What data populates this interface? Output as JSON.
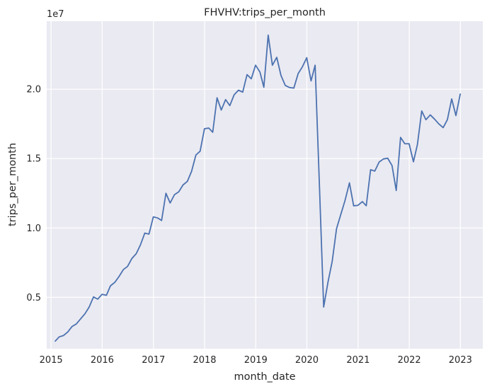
{
  "chart_data": {
    "type": "line",
    "title": "FHVHV:trips_per_month",
    "xlabel": "month_date",
    "ylabel": "trips_per_month",
    "y_offset_label": "1e7",
    "x_ticks": [
      "2015",
      "2016",
      "2017",
      "2018",
      "2019",
      "2020",
      "2021",
      "2022",
      "2023"
    ],
    "y_ticks": [
      "0.5",
      "1.0",
      "1.5",
      "2.0"
    ],
    "xlim": [
      "2014-12-01",
      "2023-06-10"
    ],
    "ylim": [
      1300000,
      24900000
    ],
    "grid": true,
    "line_color": "#4c72b0",
    "background_color": "#eaeaf2",
    "series": [
      {
        "x": [
          "2015-01-31",
          "2015-02-28",
          "2015-03-31",
          "2015-04-30",
          "2015-05-31",
          "2015-06-30",
          "2015-07-31",
          "2015-08-31",
          "2015-09-30",
          "2015-10-31",
          "2015-11-30",
          "2015-12-31",
          "2016-01-31",
          "2016-02-29",
          "2016-03-31",
          "2016-04-30",
          "2016-05-31",
          "2016-06-30",
          "2016-07-31",
          "2016-08-31",
          "2016-09-30",
          "2016-10-31",
          "2016-11-30",
          "2016-12-31",
          "2017-01-31",
          "2017-02-28",
          "2017-03-31",
          "2017-04-30",
          "2017-05-31",
          "2017-06-30",
          "2017-07-31",
          "2017-08-31",
          "2017-09-30",
          "2017-10-31",
          "2017-11-30",
          "2017-12-31",
          "2018-01-31",
          "2018-02-28",
          "2018-03-31",
          "2018-04-30",
          "2018-05-31",
          "2018-06-30",
          "2018-07-31",
          "2018-08-31",
          "2018-09-30",
          "2018-10-31",
          "2018-11-30",
          "2018-12-31",
          "2019-01-31",
          "2019-02-28",
          "2019-03-31",
          "2019-04-30",
          "2019-05-31",
          "2019-06-30",
          "2019-07-31",
          "2019-08-31",
          "2019-09-30",
          "2019-10-31",
          "2019-11-30",
          "2019-12-31",
          "2020-01-31",
          "2020-02-29",
          "2020-03-31",
          "2020-04-30",
          "2020-05-31",
          "2020-06-30",
          "2020-07-31",
          "2020-08-31",
          "2020-09-30",
          "2020-10-31",
          "2020-11-30",
          "2020-12-31",
          "2021-01-31",
          "2021-02-28",
          "2021-03-31",
          "2021-04-30",
          "2021-05-31",
          "2021-06-30",
          "2021-07-31",
          "2021-08-31",
          "2021-09-30",
          "2021-10-31",
          "2021-11-30",
          "2021-12-31",
          "2022-01-31",
          "2022-02-28",
          "2022-03-31",
          "2022-04-30",
          "2022-05-31",
          "2022-06-30",
          "2022-07-31",
          "2022-08-31",
          "2022-09-30",
          "2022-10-31",
          "2022-11-30",
          "2022-12-31"
        ],
        "y": [
          1850000,
          2150000,
          2250000,
          2500000,
          2900000,
          3080000,
          3450000,
          3820000,
          4300000,
          5030000,
          4870000,
          5220000,
          5150000,
          5830000,
          6080000,
          6500000,
          7000000,
          7230000,
          7800000,
          8150000,
          8780000,
          9630000,
          9560000,
          10800000,
          10720000,
          10540000,
          12500000,
          11800000,
          12400000,
          12600000,
          13100000,
          13360000,
          14080000,
          15260000,
          15530000,
          17150000,
          17200000,
          16900000,
          19380000,
          18500000,
          19250000,
          18820000,
          19600000,
          19930000,
          19790000,
          21050000,
          20750000,
          21730000,
          21240000,
          20140000,
          23900000,
          21730000,
          22300000,
          21000000,
          20270000,
          20120000,
          20080000,
          21130000,
          21610000,
          22270000,
          20600000,
          21730000,
          13000000,
          4300000,
          6100000,
          7600000,
          9950000,
          11000000,
          12000000,
          13250000,
          11600000,
          11630000,
          11900000,
          11600000,
          14200000,
          14100000,
          14750000,
          14970000,
          15030000,
          14500000,
          12700000,
          16530000,
          16070000,
          16070000,
          14770000,
          16000000,
          18430000,
          17800000,
          18150000,
          17850000,
          17500000,
          17230000,
          17800000,
          19300000,
          18100000,
          19650000
        ]
      }
    ]
  }
}
